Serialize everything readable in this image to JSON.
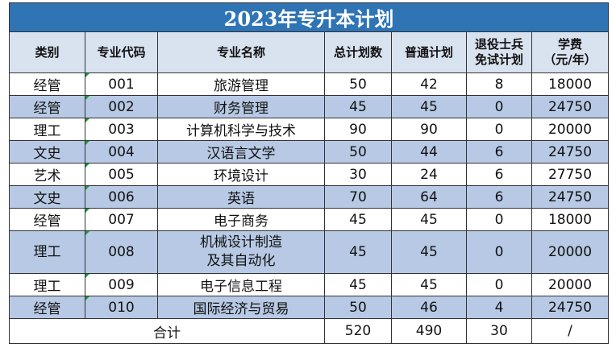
{
  "title": "2023年专升本计划",
  "headers": {
    "category": "类别",
    "code": "专业代码",
    "name": "专业名称",
    "total": "总计划数",
    "regular": "普通计划",
    "veteran_l1": "退役士兵",
    "veteran_l2": "免试计划",
    "fee_l1": "学费",
    "fee_l2": "（元/年）"
  },
  "rows": [
    {
      "category": "经管",
      "code": "001",
      "name": "旅游管理",
      "total": "50",
      "regular": "42",
      "veteran": "8",
      "fee": "18000"
    },
    {
      "category": "经管",
      "code": "002",
      "name": "财务管理",
      "total": "45",
      "regular": "45",
      "veteran": "0",
      "fee": "24750"
    },
    {
      "category": "理工",
      "code": "003",
      "name": "计算机科学与技术",
      "total": "90",
      "regular": "90",
      "veteran": "0",
      "fee": "20000"
    },
    {
      "category": "文史",
      "code": "004",
      "name": "汉语言文学",
      "total": "50",
      "regular": "44",
      "veteran": "6",
      "fee": "24750"
    },
    {
      "category": "艺术",
      "code": "005",
      "name": "环境设计",
      "total": "30",
      "regular": "24",
      "veteran": "6",
      "fee": "27750"
    },
    {
      "category": "文史",
      "code": "006",
      "name": "英语",
      "total": "70",
      "regular": "64",
      "veteran": "6",
      "fee": "24750"
    },
    {
      "category": "经管",
      "code": "007",
      "name": "电子商务",
      "total": "45",
      "regular": "45",
      "veteran": "0",
      "fee": "18000"
    },
    {
      "category": "理工",
      "code": "008",
      "name_l1": "机械设计制造",
      "name_l2": "及其自动化",
      "total": "45",
      "regular": "45",
      "veteran": "0",
      "fee": "20000"
    },
    {
      "category": "理工",
      "code": "009",
      "name": "电子信息工程",
      "total": "45",
      "regular": "45",
      "veteran": "0",
      "fee": "20000"
    },
    {
      "category": "经管",
      "code": "010",
      "name": "国际经济与贸易",
      "total": "50",
      "regular": "46",
      "veteran": "4",
      "fee": "24750"
    }
  ],
  "totals": {
    "label": "合计",
    "total": "520",
    "regular": "490",
    "veteran": "30",
    "fee": "/"
  },
  "colors": {
    "title_bg": "#2f74b5",
    "header_bg": "#d9e2ef",
    "alt_row_bg": "#b7c9e4"
  }
}
